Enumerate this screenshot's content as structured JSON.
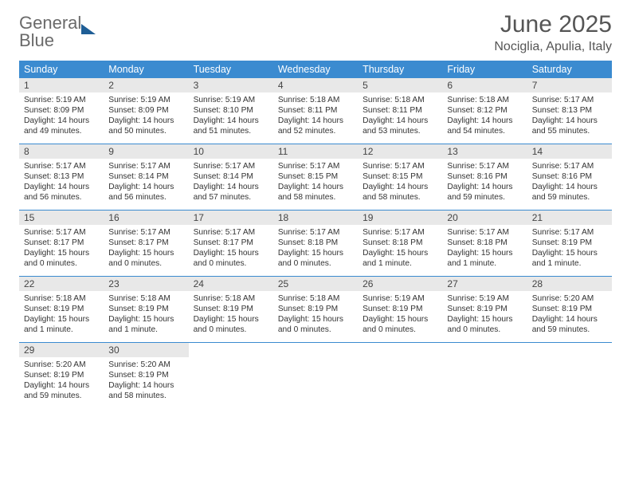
{
  "logo": {
    "line1": "General",
    "line2": "Blue"
  },
  "title": "June 2025",
  "subtitle": "Nociglia, Apulia, Italy",
  "colors": {
    "accent": "#3b8bd0",
    "daynum_bg": "#e8e8e8",
    "text": "#333333",
    "header_text": "#555555",
    "logo_gray": "#6a6a6a",
    "logo_dark": "#1f5e96"
  },
  "day_headers": [
    "Sunday",
    "Monday",
    "Tuesday",
    "Wednesday",
    "Thursday",
    "Friday",
    "Saturday"
  ],
  "weeks": [
    [
      {
        "num": "1",
        "sunrise": "Sunrise: 5:19 AM",
        "sunset": "Sunset: 8:09 PM",
        "daylight1": "Daylight: 14 hours",
        "daylight2": "and 49 minutes."
      },
      {
        "num": "2",
        "sunrise": "Sunrise: 5:19 AM",
        "sunset": "Sunset: 8:09 PM",
        "daylight1": "Daylight: 14 hours",
        "daylight2": "and 50 minutes."
      },
      {
        "num": "3",
        "sunrise": "Sunrise: 5:19 AM",
        "sunset": "Sunset: 8:10 PM",
        "daylight1": "Daylight: 14 hours",
        "daylight2": "and 51 minutes."
      },
      {
        "num": "4",
        "sunrise": "Sunrise: 5:18 AM",
        "sunset": "Sunset: 8:11 PM",
        "daylight1": "Daylight: 14 hours",
        "daylight2": "and 52 minutes."
      },
      {
        "num": "5",
        "sunrise": "Sunrise: 5:18 AM",
        "sunset": "Sunset: 8:11 PM",
        "daylight1": "Daylight: 14 hours",
        "daylight2": "and 53 minutes."
      },
      {
        "num": "6",
        "sunrise": "Sunrise: 5:18 AM",
        "sunset": "Sunset: 8:12 PM",
        "daylight1": "Daylight: 14 hours",
        "daylight2": "and 54 minutes."
      },
      {
        "num": "7",
        "sunrise": "Sunrise: 5:17 AM",
        "sunset": "Sunset: 8:13 PM",
        "daylight1": "Daylight: 14 hours",
        "daylight2": "and 55 minutes."
      }
    ],
    [
      {
        "num": "8",
        "sunrise": "Sunrise: 5:17 AM",
        "sunset": "Sunset: 8:13 PM",
        "daylight1": "Daylight: 14 hours",
        "daylight2": "and 56 minutes."
      },
      {
        "num": "9",
        "sunrise": "Sunrise: 5:17 AM",
        "sunset": "Sunset: 8:14 PM",
        "daylight1": "Daylight: 14 hours",
        "daylight2": "and 56 minutes."
      },
      {
        "num": "10",
        "sunrise": "Sunrise: 5:17 AM",
        "sunset": "Sunset: 8:14 PM",
        "daylight1": "Daylight: 14 hours",
        "daylight2": "and 57 minutes."
      },
      {
        "num": "11",
        "sunrise": "Sunrise: 5:17 AM",
        "sunset": "Sunset: 8:15 PM",
        "daylight1": "Daylight: 14 hours",
        "daylight2": "and 58 minutes."
      },
      {
        "num": "12",
        "sunrise": "Sunrise: 5:17 AM",
        "sunset": "Sunset: 8:15 PM",
        "daylight1": "Daylight: 14 hours",
        "daylight2": "and 58 minutes."
      },
      {
        "num": "13",
        "sunrise": "Sunrise: 5:17 AM",
        "sunset": "Sunset: 8:16 PM",
        "daylight1": "Daylight: 14 hours",
        "daylight2": "and 59 minutes."
      },
      {
        "num": "14",
        "sunrise": "Sunrise: 5:17 AM",
        "sunset": "Sunset: 8:16 PM",
        "daylight1": "Daylight: 14 hours",
        "daylight2": "and 59 minutes."
      }
    ],
    [
      {
        "num": "15",
        "sunrise": "Sunrise: 5:17 AM",
        "sunset": "Sunset: 8:17 PM",
        "daylight1": "Daylight: 15 hours",
        "daylight2": "and 0 minutes."
      },
      {
        "num": "16",
        "sunrise": "Sunrise: 5:17 AM",
        "sunset": "Sunset: 8:17 PM",
        "daylight1": "Daylight: 15 hours",
        "daylight2": "and 0 minutes."
      },
      {
        "num": "17",
        "sunrise": "Sunrise: 5:17 AM",
        "sunset": "Sunset: 8:17 PM",
        "daylight1": "Daylight: 15 hours",
        "daylight2": "and 0 minutes."
      },
      {
        "num": "18",
        "sunrise": "Sunrise: 5:17 AM",
        "sunset": "Sunset: 8:18 PM",
        "daylight1": "Daylight: 15 hours",
        "daylight2": "and 0 minutes."
      },
      {
        "num": "19",
        "sunrise": "Sunrise: 5:17 AM",
        "sunset": "Sunset: 8:18 PM",
        "daylight1": "Daylight: 15 hours",
        "daylight2": "and 1 minute."
      },
      {
        "num": "20",
        "sunrise": "Sunrise: 5:17 AM",
        "sunset": "Sunset: 8:18 PM",
        "daylight1": "Daylight: 15 hours",
        "daylight2": "and 1 minute."
      },
      {
        "num": "21",
        "sunrise": "Sunrise: 5:17 AM",
        "sunset": "Sunset: 8:19 PM",
        "daylight1": "Daylight: 15 hours",
        "daylight2": "and 1 minute."
      }
    ],
    [
      {
        "num": "22",
        "sunrise": "Sunrise: 5:18 AM",
        "sunset": "Sunset: 8:19 PM",
        "daylight1": "Daylight: 15 hours",
        "daylight2": "and 1 minute."
      },
      {
        "num": "23",
        "sunrise": "Sunrise: 5:18 AM",
        "sunset": "Sunset: 8:19 PM",
        "daylight1": "Daylight: 15 hours",
        "daylight2": "and 1 minute."
      },
      {
        "num": "24",
        "sunrise": "Sunrise: 5:18 AM",
        "sunset": "Sunset: 8:19 PM",
        "daylight1": "Daylight: 15 hours",
        "daylight2": "and 0 minutes."
      },
      {
        "num": "25",
        "sunrise": "Sunrise: 5:18 AM",
        "sunset": "Sunset: 8:19 PM",
        "daylight1": "Daylight: 15 hours",
        "daylight2": "and 0 minutes."
      },
      {
        "num": "26",
        "sunrise": "Sunrise: 5:19 AM",
        "sunset": "Sunset: 8:19 PM",
        "daylight1": "Daylight: 15 hours",
        "daylight2": "and 0 minutes."
      },
      {
        "num": "27",
        "sunrise": "Sunrise: 5:19 AM",
        "sunset": "Sunset: 8:19 PM",
        "daylight1": "Daylight: 15 hours",
        "daylight2": "and 0 minutes."
      },
      {
        "num": "28",
        "sunrise": "Sunrise: 5:20 AM",
        "sunset": "Sunset: 8:19 PM",
        "daylight1": "Daylight: 14 hours",
        "daylight2": "and 59 minutes."
      }
    ],
    [
      {
        "num": "29",
        "sunrise": "Sunrise: 5:20 AM",
        "sunset": "Sunset: 8:19 PM",
        "daylight1": "Daylight: 14 hours",
        "daylight2": "and 59 minutes."
      },
      {
        "num": "30",
        "sunrise": "Sunrise: 5:20 AM",
        "sunset": "Sunset: 8:19 PM",
        "daylight1": "Daylight: 14 hours",
        "daylight2": "and 58 minutes."
      },
      null,
      null,
      null,
      null,
      null
    ]
  ]
}
